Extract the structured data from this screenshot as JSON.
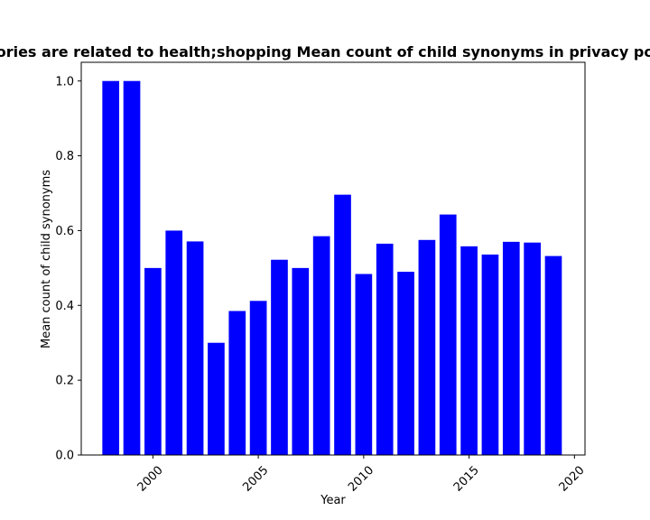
{
  "chart_data": {
    "type": "bar",
    "title": "ories are related to health;shopping Mean count of child synonyms in privacy po",
    "xlabel": "Year",
    "ylabel": "Mean count of child synonyms",
    "x": [
      1998,
      1999,
      2000,
      2001,
      2002,
      2003,
      2004,
      2005,
      2006,
      2007,
      2008,
      2009,
      2010,
      2011,
      2012,
      2013,
      2014,
      2015,
      2016,
      2017,
      2018,
      2019
    ],
    "values": [
      1.0,
      1.0,
      0.5,
      0.6,
      0.571,
      0.3,
      0.385,
      0.412,
      0.522,
      0.5,
      0.585,
      0.696,
      0.484,
      0.565,
      0.49,
      0.575,
      0.643,
      0.558,
      0.536,
      0.57,
      0.568,
      0.532
    ],
    "xlim": [
      1996.6,
      2020.5
    ],
    "ylim": [
      0,
      1.05
    ],
    "xticks": [
      2000,
      2005,
      2010,
      2015,
      2020
    ],
    "xtick_labels": [
      "2000",
      "2005",
      "2010",
      "2015",
      "2020"
    ],
    "xtick_rotation": 45,
    "yticks": [
      0.0,
      0.2,
      0.4,
      0.6,
      0.8,
      1.0
    ],
    "ytick_labels": [
      "0.0",
      "0.2",
      "0.4",
      "0.6",
      "0.8",
      "1.0"
    ],
    "bar_color": "#0000ff",
    "grid": false,
    "legend": "none"
  }
}
